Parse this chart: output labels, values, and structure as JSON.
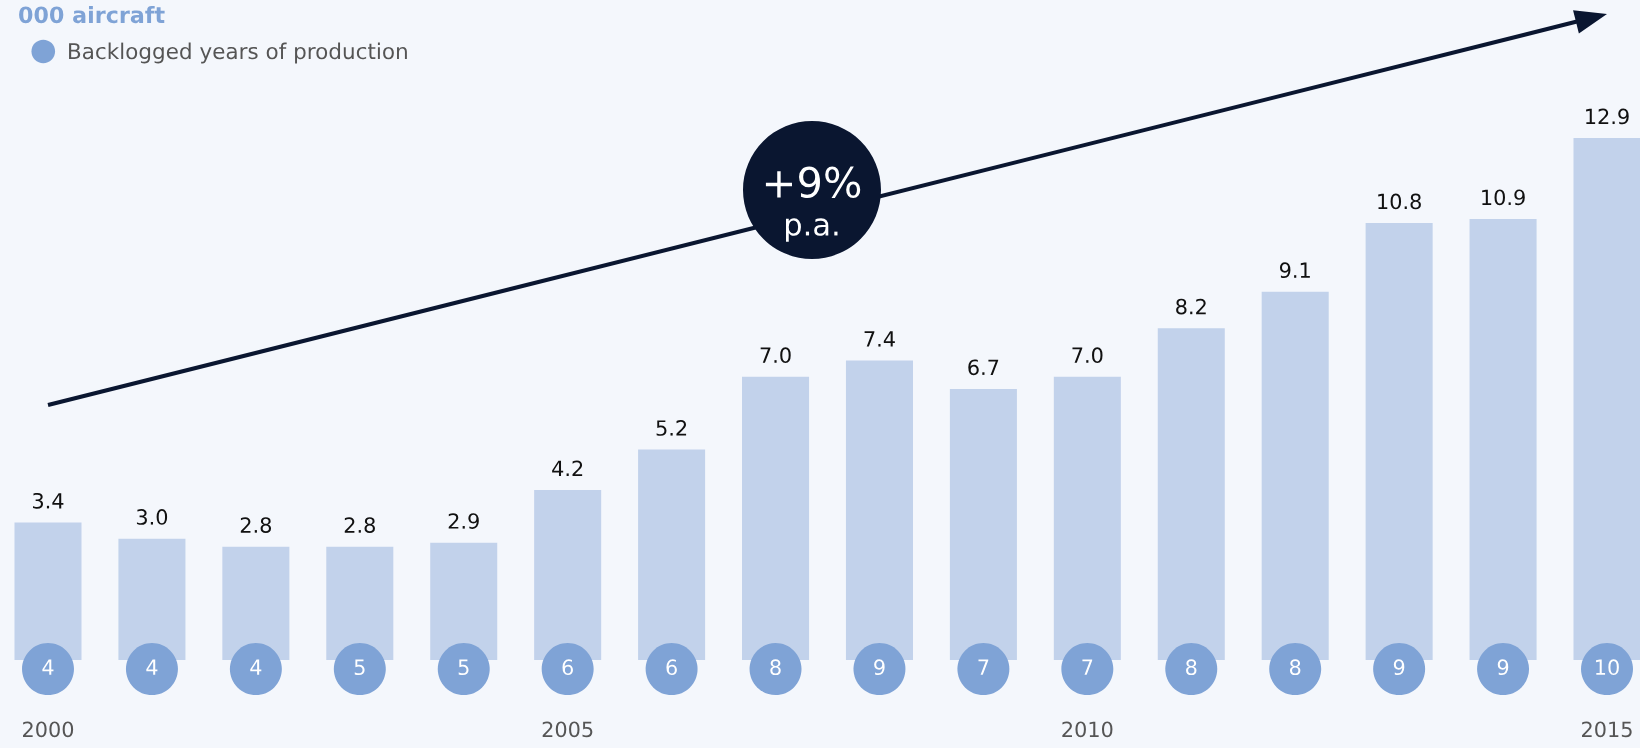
{
  "chart_data": [
    {
      "type": "bar",
      "title": "000 aircraft",
      "categories": [
        "2000",
        null,
        null,
        null,
        null,
        "2005",
        null,
        null,
        null,
        null,
        "2010",
        null,
        null,
        null,
        null,
        "2015"
      ],
      "values": [
        3.4,
        3.0,
        2.8,
        2.8,
        2.9,
        4.2,
        5.2,
        7.0,
        7.4,
        6.7,
        7.0,
        8.2,
        9.1,
        10.8,
        10.9,
        12.9
      ],
      "value_labels": [
        "3.4",
        "3.0",
        "2.8",
        "2.8",
        "2.9",
        "4.2",
        "5.2",
        "7.0",
        "7.4",
        "6.7",
        "7.0",
        "8.2",
        "9.1",
        "10.8",
        "10.9",
        "12.9"
      ],
      "color": "#c2d2eb",
      "tick_labels": "x",
      "annotations": [
        "+9%",
        "p.a."
      ]
    },
    {
      "type": "other",
      "series": [
        {
          "name": "Backlogged years of production",
          "color": "#7fa3d6",
          "values": [
            4,
            4,
            4,
            5,
            5,
            6,
            6,
            8,
            9,
            7,
            7,
            8,
            8,
            9,
            9,
            10
          ]
        }
      ],
      "data_labels": true,
      "legend": "top left"
    }
  ]
}
